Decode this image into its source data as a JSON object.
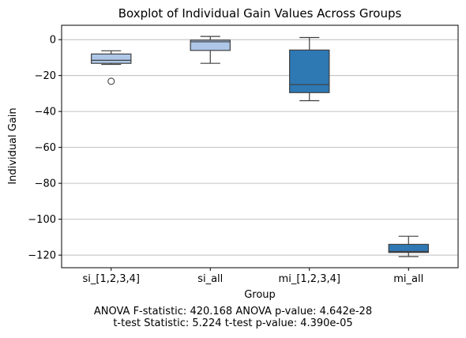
{
  "chart_data": {
    "type": "box",
    "title": "Boxplot of Individual Gain Values Across Groups",
    "xlabel": "Group",
    "ylabel": "Individual Gain",
    "ylim": [
      -127,
      8
    ],
    "yticks": [
      0,
      -20,
      -40,
      -60,
      -80,
      -100,
      -120
    ],
    "grid": "horizontal",
    "categories": [
      "si_[1,2,3,4]",
      "si_all",
      "mi_[1,2,3,4]",
      "mi_all"
    ],
    "boxes": [
      {
        "name": "si_[1,2,3,4]",
        "whisker_low": -13.8,
        "q1": -13.2,
        "median": -11.5,
        "q3": -8.0,
        "whisker_high": -6.2,
        "outliers": [
          -23.2
        ],
        "color": "#aec7e8"
      },
      {
        "name": "si_all",
        "whisker_low": -13.2,
        "q1": -6.0,
        "median": -1.2,
        "q3": -0.3,
        "whisker_high": 1.8,
        "outliers": [],
        "color": "#aec7e8"
      },
      {
        "name": "mi_[1,2,3,4]",
        "whisker_low": -34.0,
        "q1": -29.5,
        "median": -25.0,
        "q3": -5.8,
        "whisker_high": 1.2,
        "outliers": [],
        "color": "#2e78b4"
      },
      {
        "name": "mi_all",
        "whisker_low": -120.8,
        "q1": -118.5,
        "median": -118.0,
        "q3": -114.0,
        "whisker_high": -109.5,
        "outliers": [],
        "color": "#2e78b4"
      }
    ]
  },
  "annotations": {
    "line1": "ANOVA F-statistic: 420.168 ANOVA p-value: 4.642e-28",
    "line2": "t-test Statistic: 5.224 t-test p-value: 4.390e-05"
  }
}
